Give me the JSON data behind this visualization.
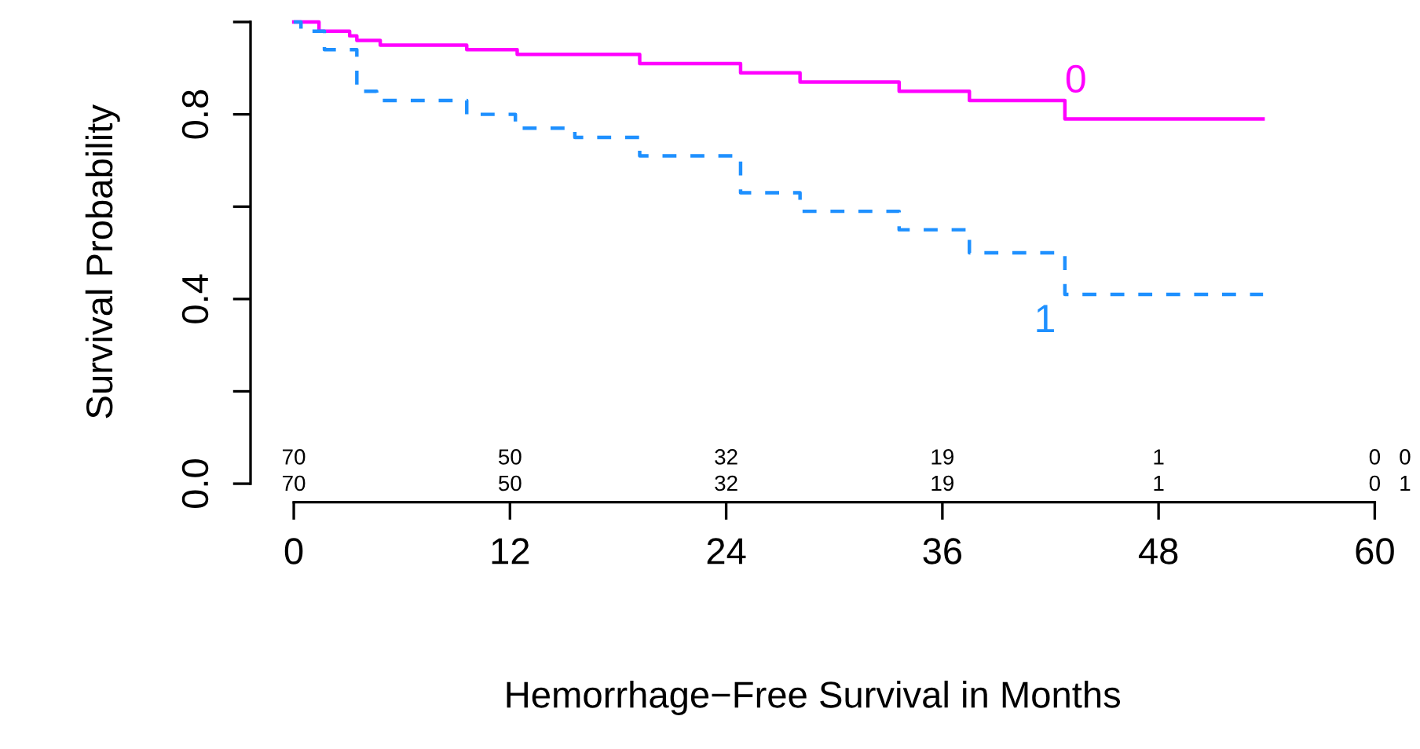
{
  "chart_data": {
    "type": "step",
    "xlabel": "Hemorrhage−Free Survival in Months",
    "ylabel": "Survival Probability",
    "xlim": [
      -2.4,
      60
    ],
    "ylim": [
      -0.04,
      1.0
    ],
    "xticks": [
      0,
      12,
      24,
      36,
      48,
      60
    ],
    "yticks": [
      {
        "value": 0,
        "label": "0.0"
      },
      {
        "value": 0.2,
        "label": null
      },
      {
        "value": 0.4,
        "label": "0.4"
      },
      {
        "value": 0.6,
        "label": null
      },
      {
        "value": 0.8,
        "label": "0.8"
      },
      {
        "value": 1.0,
        "label": null
      }
    ],
    "grid": false,
    "legend": false,
    "series": [
      {
        "name": "0",
        "color": "#ff00ff",
        "line_style": "solid",
        "x": [
          0,
          1.4,
          3.1,
          3.5,
          4.8,
          9.6,
          12.4,
          15.6,
          19.2,
          24.8,
          28.1,
          33.6,
          37.5,
          42.8,
          53.8
        ],
        "values": [
          1.0,
          0.98,
          0.97,
          0.96,
          0.95,
          0.94,
          0.93,
          0.93,
          0.91,
          0.89,
          0.87,
          0.85,
          0.83,
          0.79,
          0.79
        ]
      },
      {
        "name": "1",
        "color": "#1e90ff",
        "line_style": "dashed",
        "x": [
          0,
          0.4,
          1.7,
          3.5,
          4.6,
          9.6,
          12.3,
          15.6,
          19.2,
          24.8,
          28.1,
          33.6,
          37.5,
          42.8,
          53.8
        ],
        "values": [
          1.0,
          0.98,
          0.94,
          0.85,
          0.83,
          0.8,
          0.77,
          0.75,
          0.71,
          0.63,
          0.59,
          0.55,
          0.5,
          0.41,
          0.41
        ]
      }
    ],
    "annotations": [
      "70",
      "50",
      "32",
      "19",
      "1",
      "0",
      "0",
      "70",
      "50",
      "32",
      "19",
      "1",
      "0",
      "1"
    ]
  }
}
